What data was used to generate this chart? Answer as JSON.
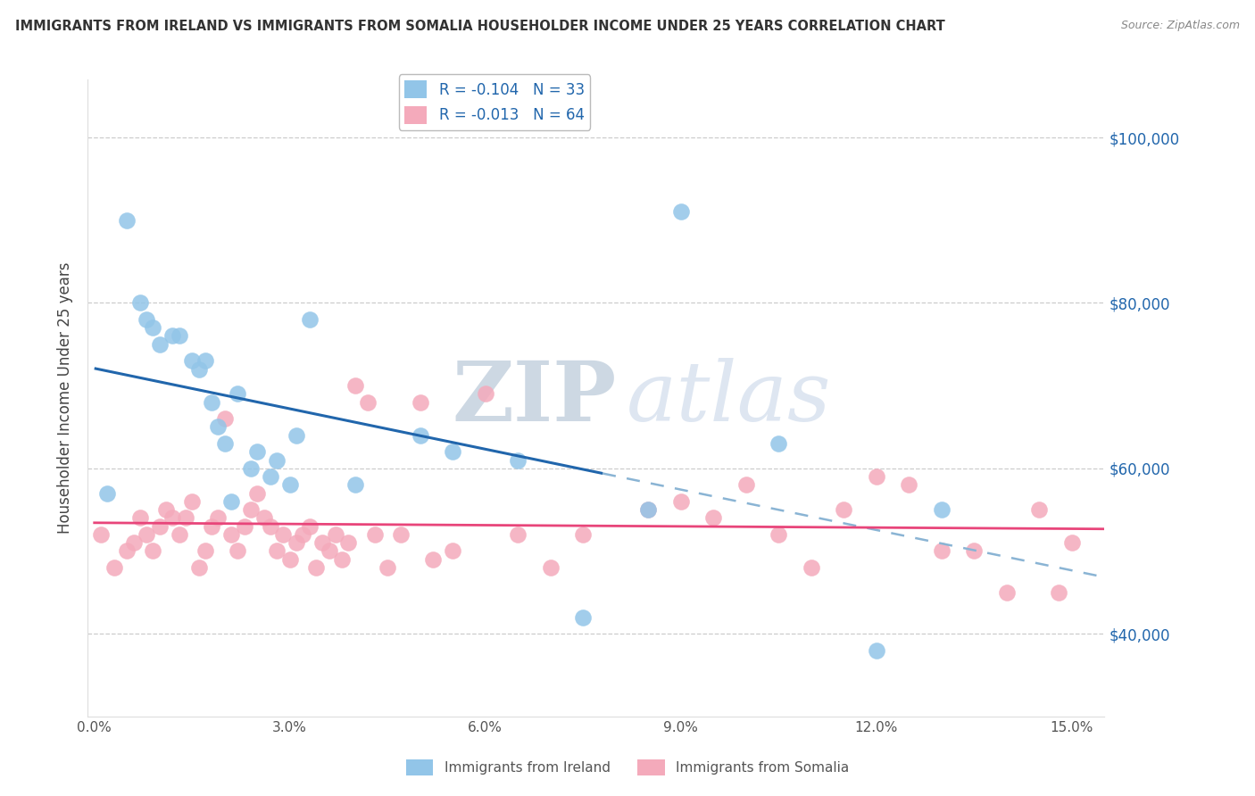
{
  "title": "IMMIGRANTS FROM IRELAND VS IMMIGRANTS FROM SOMALIA HOUSEHOLDER INCOME UNDER 25 YEARS CORRELATION CHART",
  "source": "Source: ZipAtlas.com",
  "ylabel": "Householder Income Under 25 years",
  "xlim": [
    -0.001,
    0.155
  ],
  "ylim": [
    30000,
    107000
  ],
  "xticks": [
    0.0,
    0.03,
    0.06,
    0.09,
    0.12,
    0.15
  ],
  "xticklabels": [
    "0.0%",
    "3.0%",
    "6.0%",
    "9.0%",
    "12.0%",
    "15.0%"
  ],
  "yticks_right": [
    40000,
    60000,
    80000,
    100000
  ],
  "yticklabels_right": [
    "$40,000",
    "$60,000",
    "$80,000",
    "$100,000"
  ],
  "ireland_color": "#92C5E8",
  "somalia_color": "#F4AABB",
  "ireland_line_color": "#2166AC",
  "somalia_line_color": "#E8457A",
  "dashed_color": "#8AB4D4",
  "ireland_R": -0.104,
  "ireland_N": 33,
  "somalia_R": -0.013,
  "somalia_N": 64,
  "ireland_x": [
    0.002,
    0.005,
    0.007,
    0.008,
    0.009,
    0.01,
    0.012,
    0.013,
    0.015,
    0.016,
    0.017,
    0.018,
    0.019,
    0.02,
    0.021,
    0.022,
    0.024,
    0.025,
    0.027,
    0.028,
    0.03,
    0.031,
    0.033,
    0.04,
    0.05,
    0.055,
    0.065,
    0.075,
    0.085,
    0.09,
    0.105,
    0.12,
    0.13
  ],
  "ireland_y": [
    57000,
    90000,
    80000,
    78000,
    77000,
    75000,
    76000,
    76000,
    73000,
    72000,
    73000,
    68000,
    65000,
    63000,
    56000,
    69000,
    60000,
    62000,
    59000,
    61000,
    58000,
    64000,
    78000,
    58000,
    64000,
    62000,
    61000,
    42000,
    55000,
    91000,
    63000,
    38000,
    55000
  ],
  "somalia_x": [
    0.001,
    0.003,
    0.005,
    0.006,
    0.007,
    0.008,
    0.009,
    0.01,
    0.011,
    0.012,
    0.013,
    0.014,
    0.015,
    0.016,
    0.017,
    0.018,
    0.019,
    0.02,
    0.021,
    0.022,
    0.023,
    0.024,
    0.025,
    0.026,
    0.027,
    0.028,
    0.029,
    0.03,
    0.031,
    0.032,
    0.033,
    0.034,
    0.035,
    0.036,
    0.037,
    0.038,
    0.039,
    0.04,
    0.042,
    0.043,
    0.045,
    0.047,
    0.05,
    0.052,
    0.055,
    0.06,
    0.065,
    0.07,
    0.075,
    0.085,
    0.09,
    0.095,
    0.1,
    0.105,
    0.115,
    0.12,
    0.13,
    0.135,
    0.14,
    0.145,
    0.148,
    0.15,
    0.125,
    0.11
  ],
  "somalia_y": [
    52000,
    48000,
    50000,
    51000,
    54000,
    52000,
    50000,
    53000,
    55000,
    54000,
    52000,
    54000,
    56000,
    48000,
    50000,
    53000,
    54000,
    66000,
    52000,
    50000,
    53000,
    55000,
    57000,
    54000,
    53000,
    50000,
    52000,
    49000,
    51000,
    52000,
    53000,
    48000,
    51000,
    50000,
    52000,
    49000,
    51000,
    70000,
    68000,
    52000,
    48000,
    52000,
    68000,
    49000,
    50000,
    69000,
    52000,
    48000,
    52000,
    55000,
    56000,
    54000,
    58000,
    52000,
    55000,
    59000,
    50000,
    50000,
    45000,
    55000,
    45000,
    51000,
    58000,
    48000
  ],
  "ireland_line_solid_end": 0.078,
  "watermark_zip": "ZIP",
  "watermark_atlas": "atlas",
  "background_color": "#FFFFFF",
  "grid_color": "#CCCCCC",
  "title_color": "#333333",
  "source_color": "#888888",
  "tick_color_right": "#2166AC",
  "legend_label_color": "#2166AC"
}
